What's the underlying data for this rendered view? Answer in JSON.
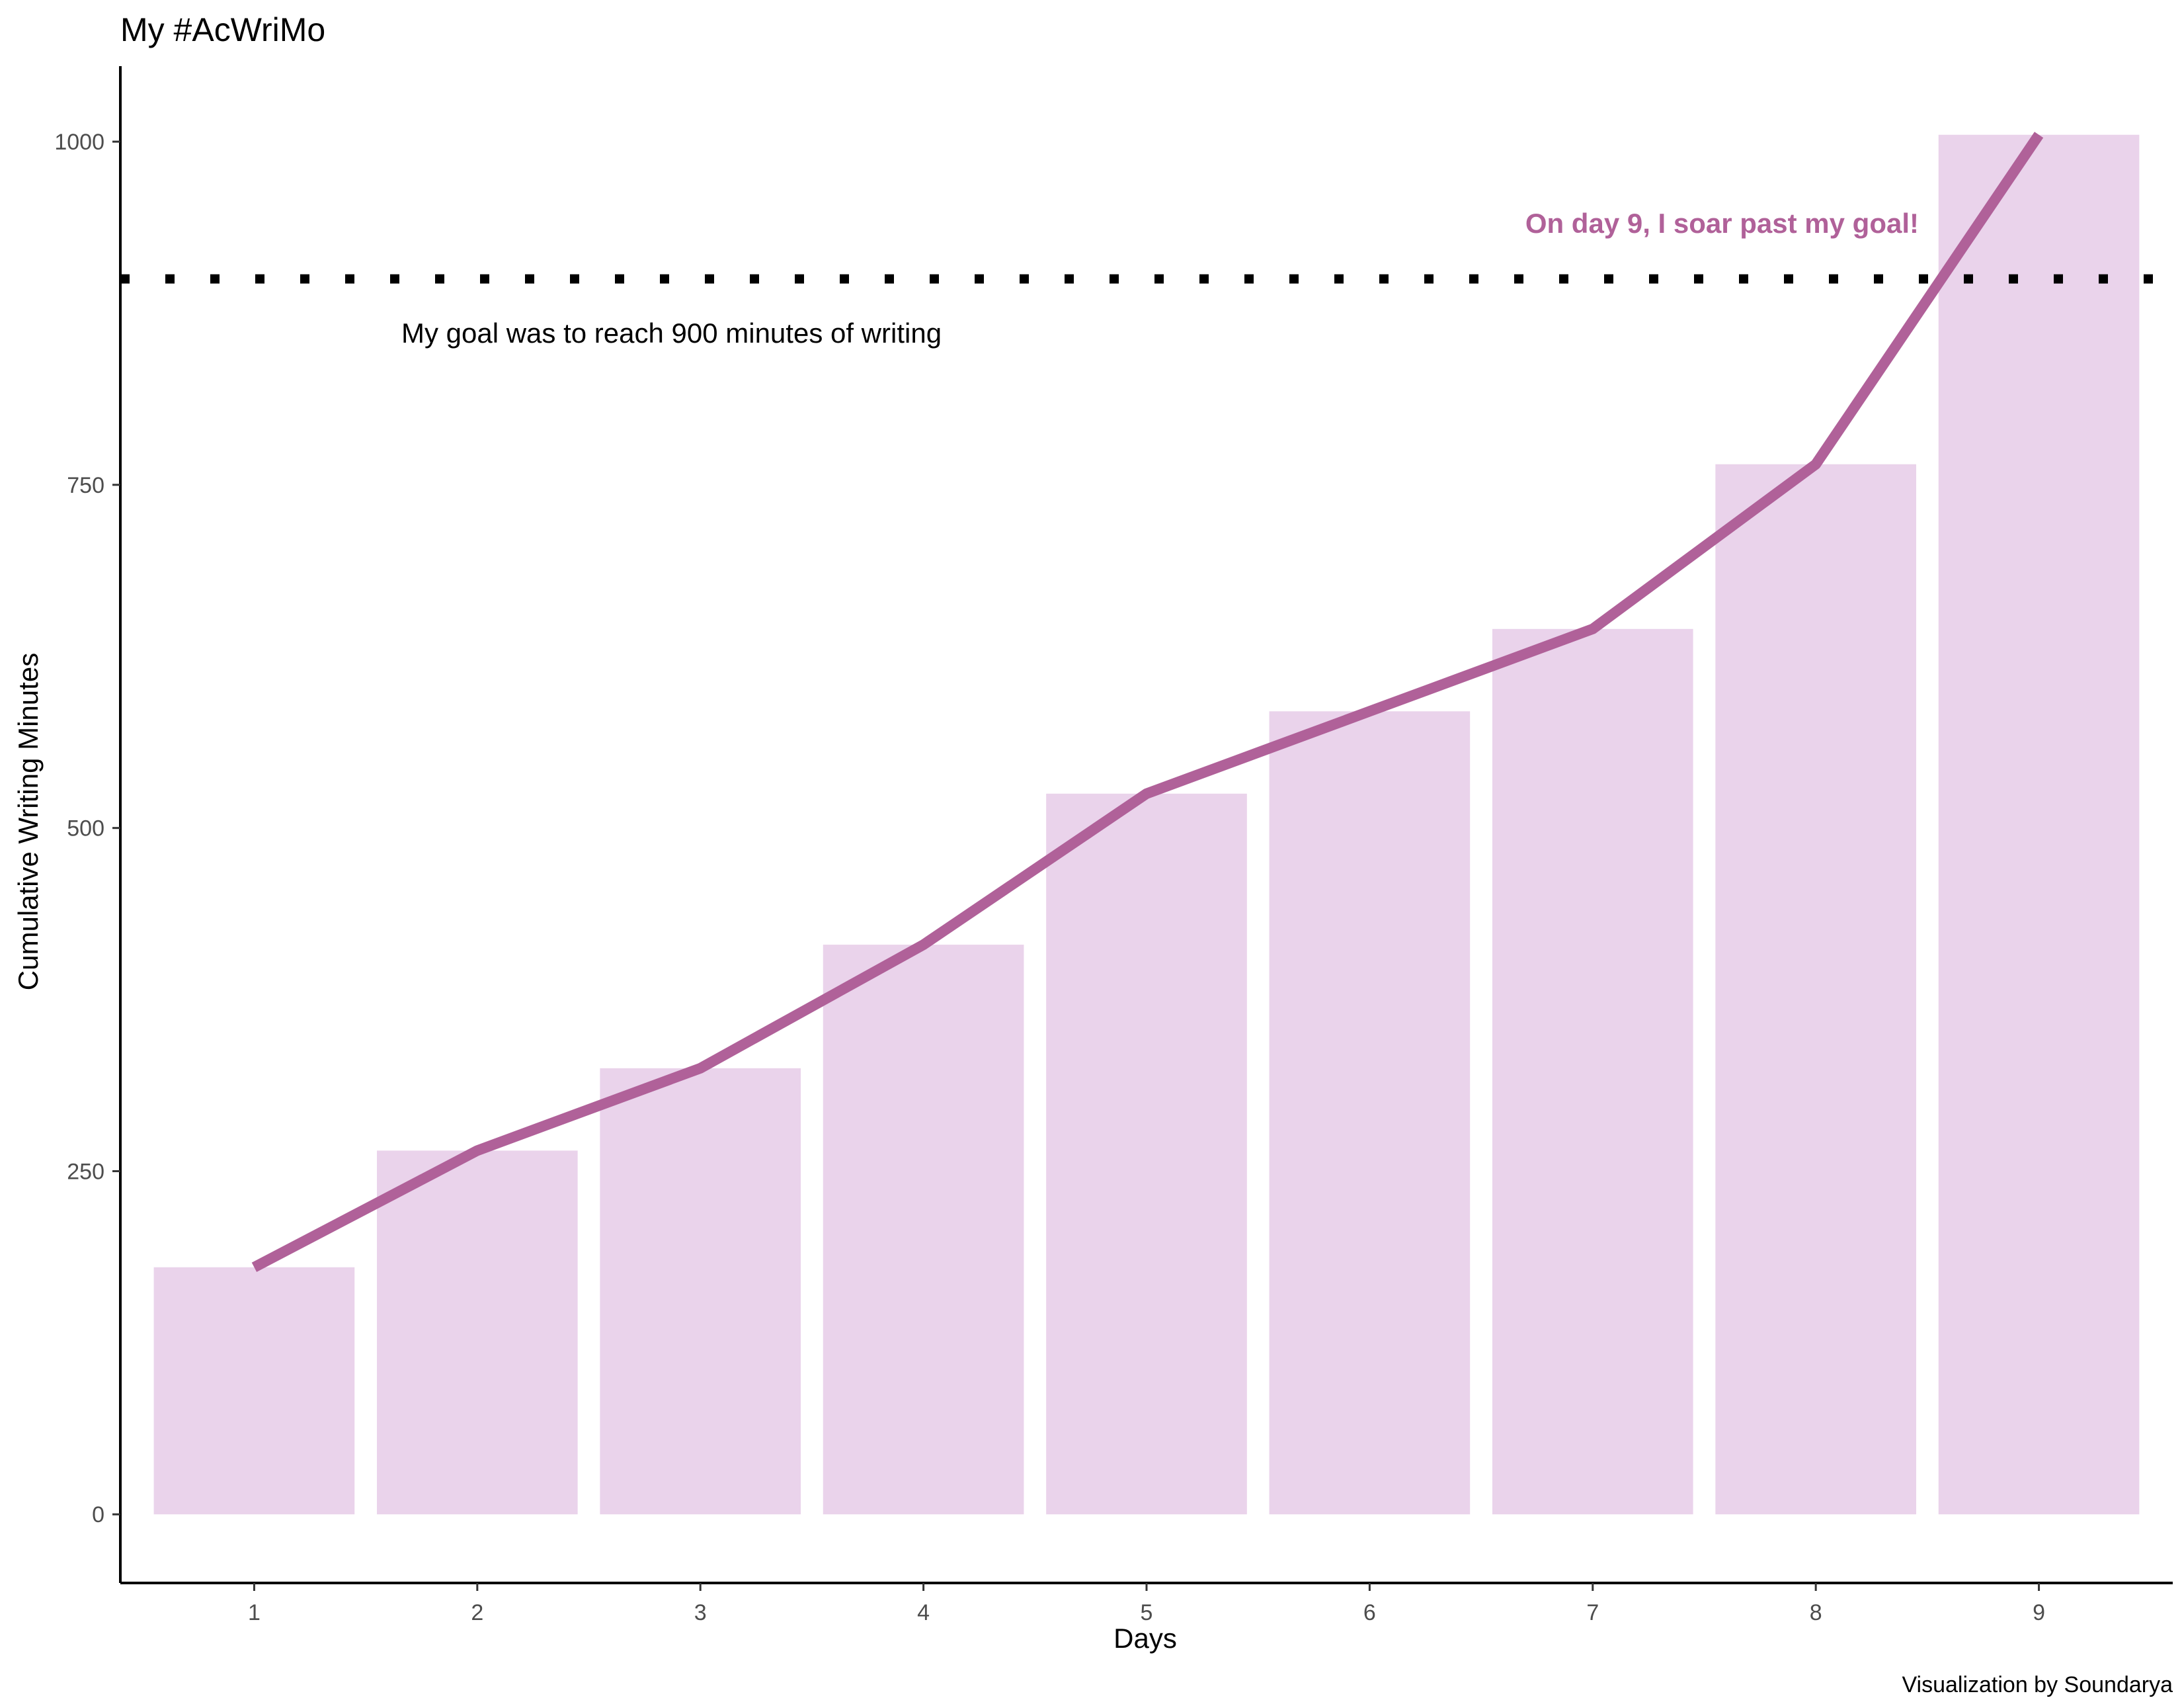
{
  "chart_data": {
    "type": "bar",
    "title": "My #AcWriMo",
    "xlabel": "Days",
    "ylabel": "Cumulative Writing Minutes",
    "categories": [
      "1",
      "2",
      "3",
      "4",
      "5",
      "6",
      "7",
      "8",
      "9"
    ],
    "x": [
      1,
      2,
      3,
      4,
      5,
      6,
      7,
      8,
      9
    ],
    "values": [
      180,
      265,
      325,
      415,
      525,
      585,
      645,
      765,
      1005
    ],
    "overlay_line": {
      "type": "line",
      "x": [
        1,
        2,
        3,
        4,
        5,
        6,
        7,
        8,
        9
      ],
      "values": [
        180,
        265,
        325,
        415,
        525,
        585,
        645,
        765,
        1005
      ]
    },
    "goal": {
      "value": 900,
      "line_style": "dotted",
      "label": "My goal was to reach 900 minutes of writing"
    },
    "highlight_annotation": "On day 9, I soar past my goal!",
    "caption": "Visualization by Soundarya",
    "yticks": [
      0,
      250,
      500,
      750,
      1000
    ],
    "ylim": [
      -50,
      1055
    ],
    "xlim": [
      0.4,
      9.6
    ],
    "grid": false,
    "legend": "none",
    "colors": {
      "bar": "#ead3eb",
      "line": "#b06199",
      "goal_line": "#000000",
      "highlight_text": "#b06199",
      "axis": "#000000",
      "tick_label": "#4d4d4d"
    }
  }
}
